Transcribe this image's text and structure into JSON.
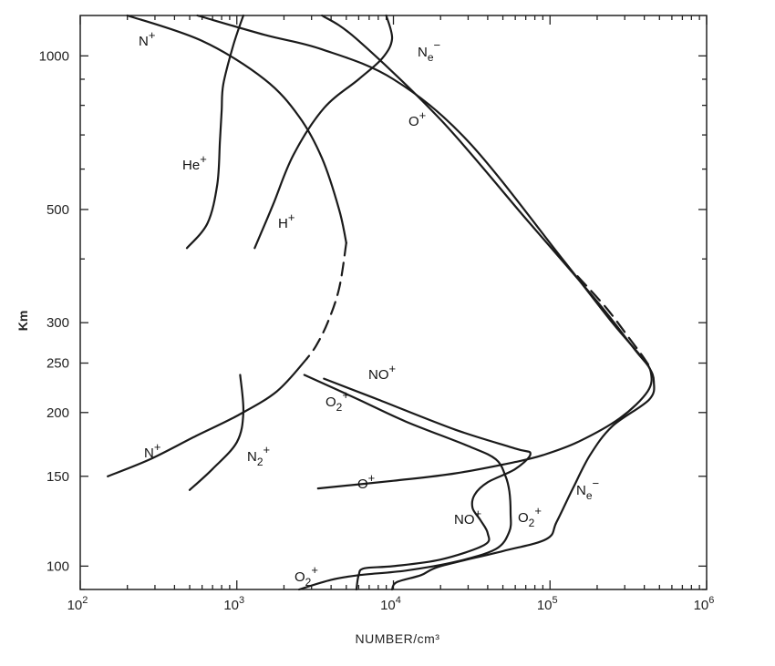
{
  "chart_data": {
    "type": "line",
    "title": "",
    "xlabel": "NUMBER/cm³",
    "ylabel": "Km",
    "x_scale": "log",
    "y_scale": "log",
    "xlim": [
      100,
      1000000
    ],
    "ylim": [
      90,
      1200
    ],
    "x_ticks": [
      {
        "value": 100,
        "base": "10",
        "exp": "2"
      },
      {
        "value": 1000,
        "base": "10",
        "exp": "3"
      },
      {
        "value": 10000,
        "base": "10",
        "exp": "4"
      },
      {
        "value": 100000,
        "base": "10",
        "exp": "5"
      },
      {
        "value": 1000000,
        "base": "10",
        "exp": "6"
      }
    ],
    "y_ticks": [
      {
        "value": 100,
        "label": "100"
      },
      {
        "value": 150,
        "label": "150"
      },
      {
        "value": 200,
        "label": "200"
      },
      {
        "value": 250,
        "label": "250"
      },
      {
        "value": 300,
        "label": "300"
      },
      {
        "value": 500,
        "label": "500"
      },
      {
        "value": 1000,
        "label": "1000"
      }
    ],
    "grid": false,
    "legend": "none",
    "series": [
      {
        "name": "Ne⁻",
        "style": "solid",
        "points": [
          [
            3500,
            1200
          ],
          [
            5800,
            1080
          ],
          [
            20000,
            750
          ],
          [
            70000,
            480
          ],
          [
            200000,
            330
          ],
          [
            350000,
            265
          ],
          [
            430000,
            245
          ],
          [
            460000,
            230
          ],
          [
            430000,
            212
          ],
          [
            250000,
            188
          ],
          [
            180000,
            165
          ],
          [
            140000,
            142
          ],
          [
            110000,
            122
          ],
          [
            95000,
            113
          ],
          [
            50000,
            107
          ],
          [
            20000,
            100
          ],
          [
            15000,
            96
          ],
          [
            10500,
            93
          ],
          [
            9800,
            90
          ]
        ]
      },
      {
        "name": "Ne⁻ (dashed)",
        "style": "dashed",
        "points": [
          [
            150000,
            370
          ],
          [
            230000,
            320
          ],
          [
            320000,
            280
          ],
          [
            390000,
            258
          ],
          [
            440000,
            244
          ]
        ]
      },
      {
        "name": "O⁺",
        "style": "solid",
        "points": [
          [
            560,
            1200
          ],
          [
            1500,
            1100
          ],
          [
            3500,
            1030
          ],
          [
            10000,
            900
          ],
          [
            30000,
            680
          ],
          [
            120000,
            400
          ],
          [
            250000,
            300
          ],
          [
            380000,
            258
          ],
          [
            440000,
            240
          ],
          [
            420000,
            220
          ],
          [
            280000,
            195
          ],
          [
            150000,
            175
          ],
          [
            90000,
            165
          ],
          [
            60000,
            160
          ],
          [
            25000,
            152
          ],
          [
            10000,
            147
          ],
          [
            3300,
            142
          ]
        ]
      },
      {
        "name": "O₂⁺",
        "style": "solid",
        "points": [
          [
            2700,
            237
          ],
          [
            6000,
            212
          ],
          [
            12000,
            192
          ],
          [
            30000,
            172
          ],
          [
            45000,
            162
          ],
          [
            52000,
            150
          ],
          [
            55000,
            140
          ],
          [
            56000,
            127
          ],
          [
            55000,
            117
          ],
          [
            45000,
            108
          ],
          [
            25000,
            102
          ],
          [
            12000,
            98
          ],
          [
            6000,
            96
          ],
          [
            4000,
            94
          ],
          [
            2500,
            90
          ]
        ]
      },
      {
        "name": "NO⁺",
        "style": "solid",
        "points": [
          [
            3600,
            233
          ],
          [
            8000,
            212
          ],
          [
            25000,
            185
          ],
          [
            60000,
            170
          ],
          [
            75000,
            166
          ],
          [
            60000,
            155
          ],
          [
            40000,
            146
          ],
          [
            33000,
            138
          ],
          [
            32000,
            130
          ],
          [
            36000,
            123
          ],
          [
            40000,
            116
          ],
          [
            38000,
            110
          ],
          [
            20000,
            103
          ],
          [
            10000,
            100
          ],
          [
            6500,
            99
          ],
          [
            6000,
            96
          ],
          [
            5800,
            90
          ]
        ]
      },
      {
        "name": "N⁺",
        "style": "solid",
        "points": [
          [
            200,
            1200
          ],
          [
            600,
            1070
          ],
          [
            1500,
            900
          ],
          [
            2500,
            760
          ],
          [
            3500,
            630
          ],
          [
            4500,
            500
          ],
          [
            5000,
            430
          ]
        ]
      },
      {
        "name": "N⁺ (dashed)",
        "style": "dashed",
        "points": [
          [
            5000,
            430
          ],
          [
            4500,
            350
          ],
          [
            3800,
            300
          ],
          [
            3200,
            270
          ],
          [
            2800,
            255
          ]
        ]
      },
      {
        "name": "N⁺ (low)",
        "style": "solid",
        "points": [
          [
            2800,
            255
          ],
          [
            1800,
            220
          ],
          [
            1000,
            197
          ],
          [
            550,
            180
          ],
          [
            280,
            162
          ],
          [
            150,
            150
          ]
        ]
      },
      {
        "name": "He⁺",
        "style": "solid",
        "points": [
          [
            1100,
            1200
          ],
          [
            950,
            1050
          ],
          [
            820,
            880
          ],
          [
            800,
            780
          ],
          [
            780,
            680
          ],
          [
            750,
            560
          ],
          [
            650,
            470
          ],
          [
            480,
            420
          ]
        ]
      },
      {
        "name": "H⁺",
        "style": "solid",
        "points": [
          [
            9000,
            1200
          ],
          [
            9800,
            1080
          ],
          [
            8500,
            990
          ],
          [
            6000,
            900
          ],
          [
            3600,
            790
          ],
          [
            2300,
            640
          ],
          [
            1700,
            510
          ],
          [
            1300,
            420
          ]
        ]
      },
      {
        "name": "N₂⁺",
        "style": "solid",
        "points": [
          [
            1050,
            237
          ],
          [
            1100,
            200
          ],
          [
            1000,
            175
          ],
          [
            700,
            155
          ],
          [
            500,
            141
          ]
        ]
      }
    ],
    "annotations": [
      {
        "id": "ne-top",
        "base": "N",
        "sub": "e",
        "sup": "−"
      },
      {
        "id": "o-top",
        "base": "O",
        "sub": "",
        "sup": "+"
      },
      {
        "id": "np-top",
        "base": "N",
        "sub": "",
        "sup": "+"
      },
      {
        "id": "he",
        "base": "He",
        "sub": "",
        "sup": "+"
      },
      {
        "id": "h",
        "base": "H",
        "sub": "",
        "sup": "+"
      },
      {
        "id": "no-mid",
        "base": "NO",
        "sub": "",
        "sup": "+"
      },
      {
        "id": "o2-mid",
        "base": "O",
        "sub": "2",
        "sup": "+"
      },
      {
        "id": "np-low",
        "base": "N",
        "sub": "",
        "sup": "+"
      },
      {
        "id": "n2",
        "base": "N",
        "sub": "2",
        "sup": "+"
      },
      {
        "id": "o-low",
        "base": "O",
        "sub": "",
        "sup": "+"
      },
      {
        "id": "ne-low",
        "base": "N",
        "sub": "e",
        "sup": "−"
      },
      {
        "id": "no-low",
        "base": "NO",
        "sub": "",
        "sup": "+"
      },
      {
        "id": "o2-low",
        "base": "O",
        "sub": "2",
        "sup": "+"
      },
      {
        "id": "o2-bottom",
        "base": "O",
        "sub": "2",
        "sup": "+"
      }
    ]
  }
}
